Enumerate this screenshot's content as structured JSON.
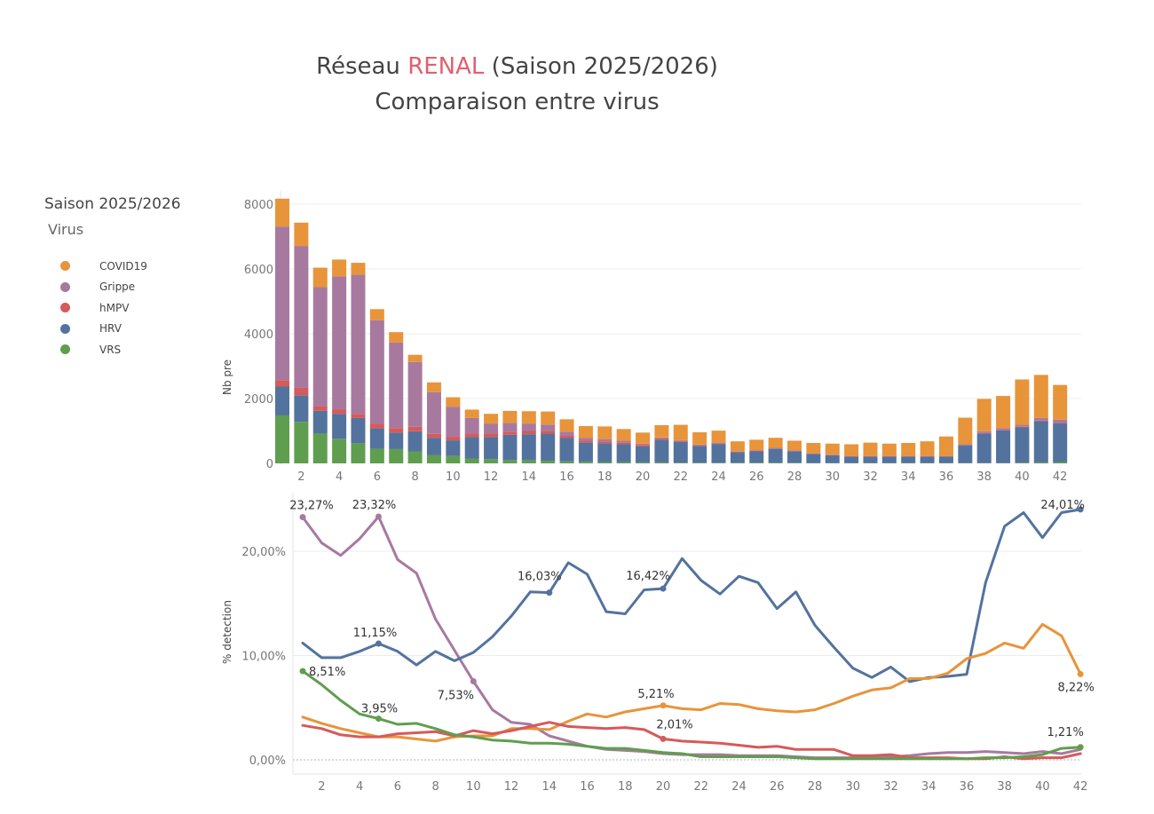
{
  "title": {
    "prefix": "Réseau ",
    "accent": "RENAL",
    "suffix": " (Saison 2025/2026)",
    "line2": "Comparaison entre virus"
  },
  "legend": {
    "title": "Saison 2025/2026",
    "subtitle": "Virus",
    "items": [
      {
        "name": "COVID19",
        "color": "#e8943a"
      },
      {
        "name": "Grippe",
        "color": "#a8799f"
      },
      {
        "name": "hMPV",
        "color": "#d65a5a"
      },
      {
        "name": "HRV",
        "color": "#53739e"
      },
      {
        "name": "VRS",
        "color": "#5f9e4f"
      }
    ]
  },
  "chart_data": [
    {
      "type": "bar",
      "stacked": true,
      "ylabel": "Nb pre",
      "ylim": [
        0,
        8200
      ],
      "yticks": [
        0,
        2000,
        4000,
        6000,
        8000
      ],
      "xtick_labels": [
        "2",
        "4",
        "6",
        "8",
        "10",
        "12",
        "14",
        "16",
        "18",
        "20",
        "22",
        "24",
        "26",
        "28",
        "30",
        "32",
        "34",
        "36",
        "38",
        "40",
        "42"
      ],
      "categories": [
        1,
        2,
        3,
        4,
        5,
        6,
        7,
        8,
        9,
        10,
        11,
        12,
        13,
        14,
        15,
        16,
        17,
        18,
        19,
        20,
        21,
        22,
        23,
        24,
        25,
        26,
        27,
        28,
        29,
        30,
        31,
        32,
        33,
        34,
        35,
        36,
        37,
        38,
        39,
        40,
        41,
        42
      ],
      "series": [
        {
          "name": "VRS",
          "color": "#5f9e4f",
          "values": [
            1480,
            1280,
            920,
            760,
            620,
            450,
            440,
            370,
            260,
            230,
            150,
            130,
            100,
            90,
            80,
            60,
            50,
            40,
            40,
            30,
            30,
            20,
            20,
            20,
            20,
            20,
            20,
            20,
            10,
            10,
            10,
            10,
            10,
            10,
            10,
            10,
            10,
            10,
            10,
            20,
            30,
            40
          ]
        },
        {
          "name": "HRV",
          "color": "#53739e",
          "values": [
            890,
            820,
            700,
            770,
            780,
            630,
            510,
            620,
            530,
            480,
            660,
            680,
            780,
            810,
            840,
            720,
            590,
            580,
            550,
            490,
            700,
            640,
            520,
            580,
            320,
            350,
            430,
            350,
            280,
            240,
            200,
            200,
            200,
            200,
            200,
            200,
            550,
            910,
            1010,
            1090,
            1270,
            1200
          ]
        },
        {
          "name": "hMPV",
          "color": "#d65a5a",
          "values": [
            200,
            230,
            150,
            140,
            130,
            140,
            140,
            140,
            120,
            110,
            110,
            110,
            100,
            100,
            90,
            70,
            60,
            60,
            50,
            50,
            40,
            30,
            20,
            20,
            20,
            20,
            10,
            10,
            10,
            10,
            10,
            10,
            10,
            10,
            10,
            10,
            10,
            20,
            20,
            20,
            20,
            20
          ]
        },
        {
          "name": "Grippe",
          "color": "#a8799f",
          "values": [
            4740,
            4380,
            3670,
            4100,
            4290,
            3200,
            2640,
            2000,
            1290,
            930,
            480,
            310,
            270,
            230,
            190,
            130,
            80,
            70,
            60,
            40,
            30,
            30,
            20,
            20,
            20,
            20,
            20,
            20,
            10,
            10,
            10,
            10,
            10,
            10,
            10,
            10,
            20,
            50,
            50,
            60,
            80,
            90
          ]
        },
        {
          "name": "COVID19",
          "color": "#e8943a",
          "values": [
            860,
            720,
            600,
            520,
            370,
            340,
            320,
            220,
            300,
            290,
            260,
            300,
            370,
            380,
            400,
            380,
            370,
            390,
            360,
            340,
            380,
            470,
            380,
            370,
            300,
            320,
            310,
            300,
            320,
            340,
            360,
            410,
            380,
            400,
            450,
            600,
            820,
            1000,
            990,
            1400,
            1330,
            1070
          ]
        }
      ]
    },
    {
      "type": "line",
      "ylabel": "% detection",
      "ylim": [
        0,
        25
      ],
      "yticks": [
        0,
        10,
        20
      ],
      "ytick_labels": [
        "0,00%",
        "10,00%",
        "20,00%"
      ],
      "xtick_labels": [
        "2",
        "4",
        "6",
        "8",
        "10",
        "12",
        "14",
        "16",
        "18",
        "20",
        "22",
        "24",
        "26",
        "28",
        "30",
        "32",
        "34",
        "36",
        "38",
        "40",
        "42"
      ],
      "x": [
        1,
        2,
        3,
        4,
        5,
        6,
        7,
        8,
        9,
        10,
        11,
        12,
        13,
        14,
        15,
        16,
        17,
        18,
        19,
        20,
        21,
        22,
        23,
        24,
        25,
        26,
        27,
        28,
        29,
        30,
        31,
        32,
        33,
        34,
        35,
        36,
        37,
        38,
        39,
        40,
        41,
        42
      ],
      "series": [
        {
          "name": "Grippe",
          "color": "#a8799f",
          "values": [
            23.27,
            20.8,
            19.6,
            21.2,
            23.32,
            19.2,
            17.9,
            13.5,
            10.5,
            7.53,
            4.8,
            3.6,
            3.4,
            2.3,
            1.8,
            1.3,
            1.0,
            0.9,
            0.8,
            0.6,
            0.5,
            0.5,
            0.5,
            0.4,
            0.4,
            0.4,
            0.3,
            0.2,
            0.2,
            0.2,
            0.3,
            0.3,
            0.4,
            0.6,
            0.7,
            0.7,
            0.8,
            0.7,
            0.6,
            0.8,
            0.6,
            1.0
          ]
        },
        {
          "name": "HRV",
          "color": "#53739e",
          "values": [
            11.2,
            9.8,
            9.8,
            10.4,
            11.15,
            10.4,
            9.1,
            10.4,
            9.5,
            10.3,
            11.8,
            13.8,
            16.1,
            16.03,
            18.9,
            17.8,
            14.2,
            14.0,
            16.3,
            16.42,
            19.3,
            17.2,
            15.9,
            17.6,
            17.0,
            14.5,
            16.1,
            12.9,
            10.8,
            8.8,
            7.9,
            8.9,
            7.5,
            7.9,
            8.0,
            8.2,
            17.0,
            22.4,
            23.7,
            21.3,
            23.7,
            24.01
          ]
        },
        {
          "name": "COVID19",
          "color": "#e8943a",
          "values": [
            4.1,
            3.5,
            3.0,
            2.6,
            2.2,
            2.2,
            2.0,
            1.8,
            2.2,
            2.3,
            2.3,
            3.0,
            3.0,
            2.9,
            3.7,
            4.4,
            4.1,
            4.6,
            4.9,
            5.21,
            4.9,
            4.8,
            5.4,
            5.3,
            4.9,
            4.7,
            4.6,
            4.8,
            5.4,
            6.1,
            6.7,
            6.9,
            7.8,
            7.8,
            8.3,
            9.7,
            10.2,
            11.2,
            10.7,
            13.0,
            11.9,
            8.22
          ]
        },
        {
          "name": "hMPV",
          "color": "#d65a5a",
          "values": [
            3.3,
            3.0,
            2.4,
            2.2,
            2.2,
            2.5,
            2.6,
            2.7,
            2.3,
            2.8,
            2.5,
            2.8,
            3.2,
            3.6,
            3.2,
            3.1,
            3.0,
            3.1,
            2.9,
            2.01,
            1.8,
            1.7,
            1.6,
            1.4,
            1.2,
            1.3,
            1.0,
            1.0,
            1.0,
            0.4,
            0.4,
            0.5,
            0.2,
            0.2,
            0.2,
            0.1,
            0.1,
            0.3,
            0.1,
            0.2,
            0.2,
            0.6
          ]
        },
        {
          "name": "VRS",
          "color": "#5f9e4f",
          "values": [
            8.51,
            7.2,
            5.7,
            4.4,
            3.95,
            3.4,
            3.5,
            3.0,
            2.4,
            2.2,
            1.9,
            1.8,
            1.6,
            1.6,
            1.5,
            1.3,
            1.1,
            1.1,
            0.9,
            0.7,
            0.6,
            0.3,
            0.3,
            0.3,
            0.3,
            0.3,
            0.2,
            0.1,
            0.1,
            0.1,
            0.1,
            0.1,
            0.1,
            0.1,
            0.1,
            0.1,
            0.2,
            0.2,
            0.3,
            0.5,
            1.1,
            1.21
          ]
        }
      ],
      "annotations": [
        {
          "series": "Grippe",
          "x": 1,
          "label": "23,27%"
        },
        {
          "series": "Grippe",
          "x": 5,
          "label": "23,32%"
        },
        {
          "series": "Grippe",
          "x": 10,
          "label": "7,53%"
        },
        {
          "series": "HRV",
          "x": 5,
          "label": "11,15%"
        },
        {
          "series": "HRV",
          "x": 14,
          "label": "16,03%"
        },
        {
          "series": "HRV",
          "x": 20,
          "label": "16,42%"
        },
        {
          "series": "HRV",
          "x": 42,
          "label": "24,01%"
        },
        {
          "series": "VRS",
          "x": 1,
          "label": "8,51%"
        },
        {
          "series": "VRS",
          "x": 5,
          "label": "3,95%"
        },
        {
          "series": "VRS",
          "x": 42,
          "label": "1,21%"
        },
        {
          "series": "COVID19",
          "x": 20,
          "label": "5,21%"
        },
        {
          "series": "COVID19",
          "x": 42,
          "label": "8,22%"
        },
        {
          "series": "hMPV",
          "x": 20,
          "label": "2,01%"
        }
      ]
    }
  ]
}
